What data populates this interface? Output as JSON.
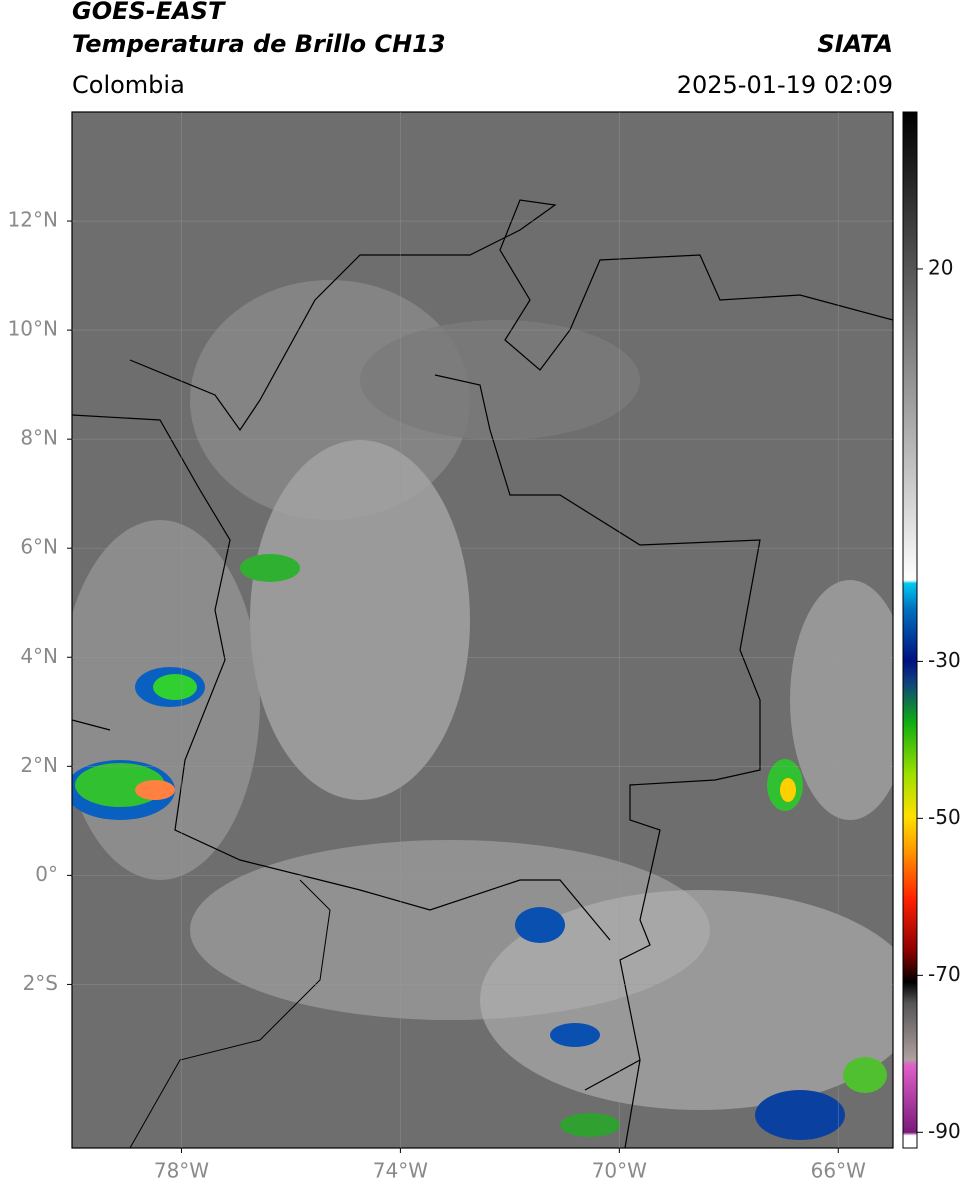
{
  "header": {
    "title_line1": "GOES-EAST",
    "title_line2": "Temperatura de Brillo CH13",
    "source": "SIATA",
    "region": "Colombia",
    "datetime": "2025-01-19 02:09"
  },
  "map": {
    "xlim": [
      -80,
      -65
    ],
    "ylim": [
      -5,
      14
    ],
    "lon_ticks": [
      {
        "value": -78,
        "label": "78°W"
      },
      {
        "value": -74,
        "label": "74°W"
      },
      {
        "value": -70,
        "label": "70°W"
      },
      {
        "value": -66,
        "label": "66°W"
      }
    ],
    "lat_ticks": [
      {
        "value": 12,
        "label": "12°N"
      },
      {
        "value": 10,
        "label": "10°N"
      },
      {
        "value": 8,
        "label": "8°N"
      },
      {
        "value": 6,
        "label": "6°N"
      },
      {
        "value": 4,
        "label": "4°N"
      },
      {
        "value": 2,
        "label": "2°N"
      },
      {
        "value": 0,
        "label": "0°"
      },
      {
        "value": -2,
        "label": "2°S"
      }
    ],
    "grid": true
  },
  "colorbar": {
    "lim": [
      -92,
      40
    ],
    "ticks": [
      20,
      -30,
      -50,
      -70,
      -90
    ]
  }
}
